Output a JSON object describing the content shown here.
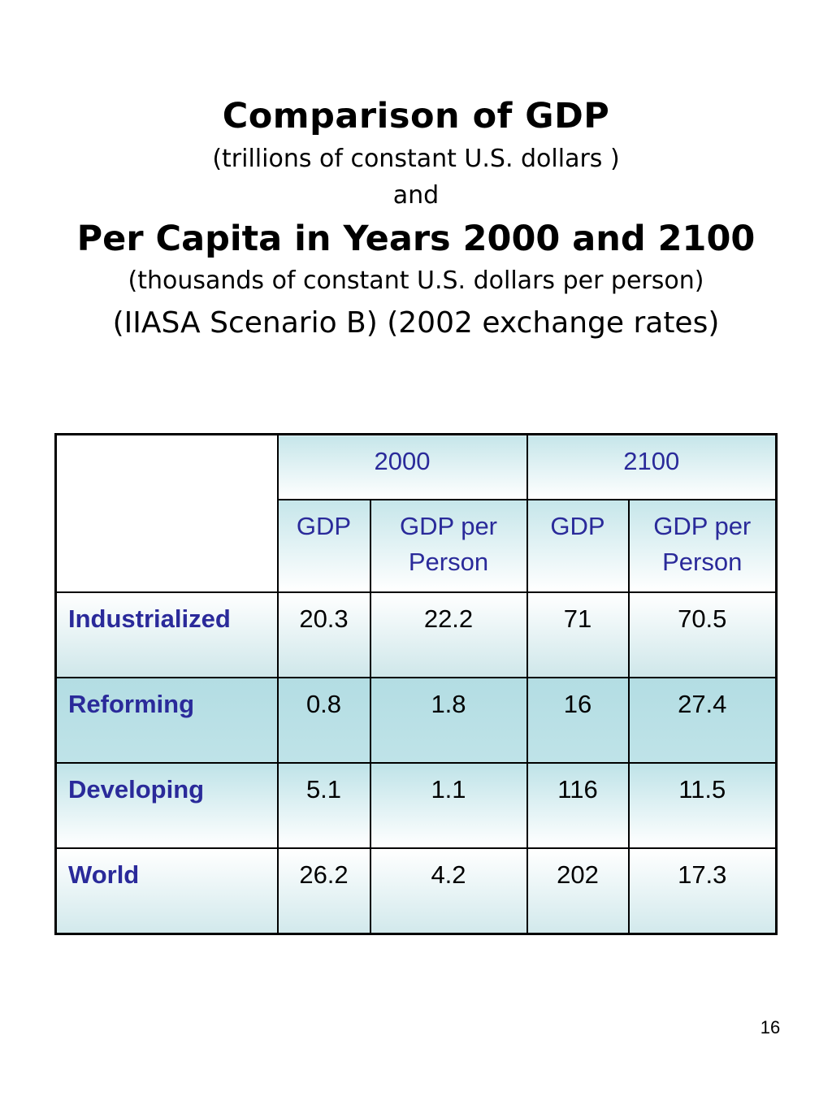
{
  "slide": {
    "title_line1": "Comparison of GDP",
    "subtitle_line1": "(trillions of constant U.S. dollars )",
    "conjunction": "and",
    "title_line2": "Per Capita in Years 2000 and 2100",
    "subtitle_line2": "(thousands of constant U.S. dollars per person)",
    "scenario_line": "(IIASA Scenario B)  (2002 exchange rates)",
    "page_number": "16"
  },
  "table": {
    "years": [
      "2000",
      "2100"
    ],
    "subheaders": [
      "GDP",
      "GDP per Person",
      "GDP",
      "GDP per Person"
    ],
    "rows": [
      {
        "label": "Industrialized",
        "values": [
          "20.3",
          "22.2",
          "71",
          "70.5"
        ]
      },
      {
        "label": "Reforming",
        "values": [
          "0.8",
          "1.8",
          "16",
          "27.4"
        ]
      },
      {
        "label": "Developing",
        "values": [
          "5.1",
          "1.1",
          "116",
          "11.5"
        ]
      },
      {
        "label": "World",
        "values": [
          "26.2",
          "4.2",
          "202",
          "17.3"
        ]
      }
    ]
  },
  "colors": {
    "label_blue": "#2a2a9a",
    "header_teal": "#c6e6ea"
  }
}
